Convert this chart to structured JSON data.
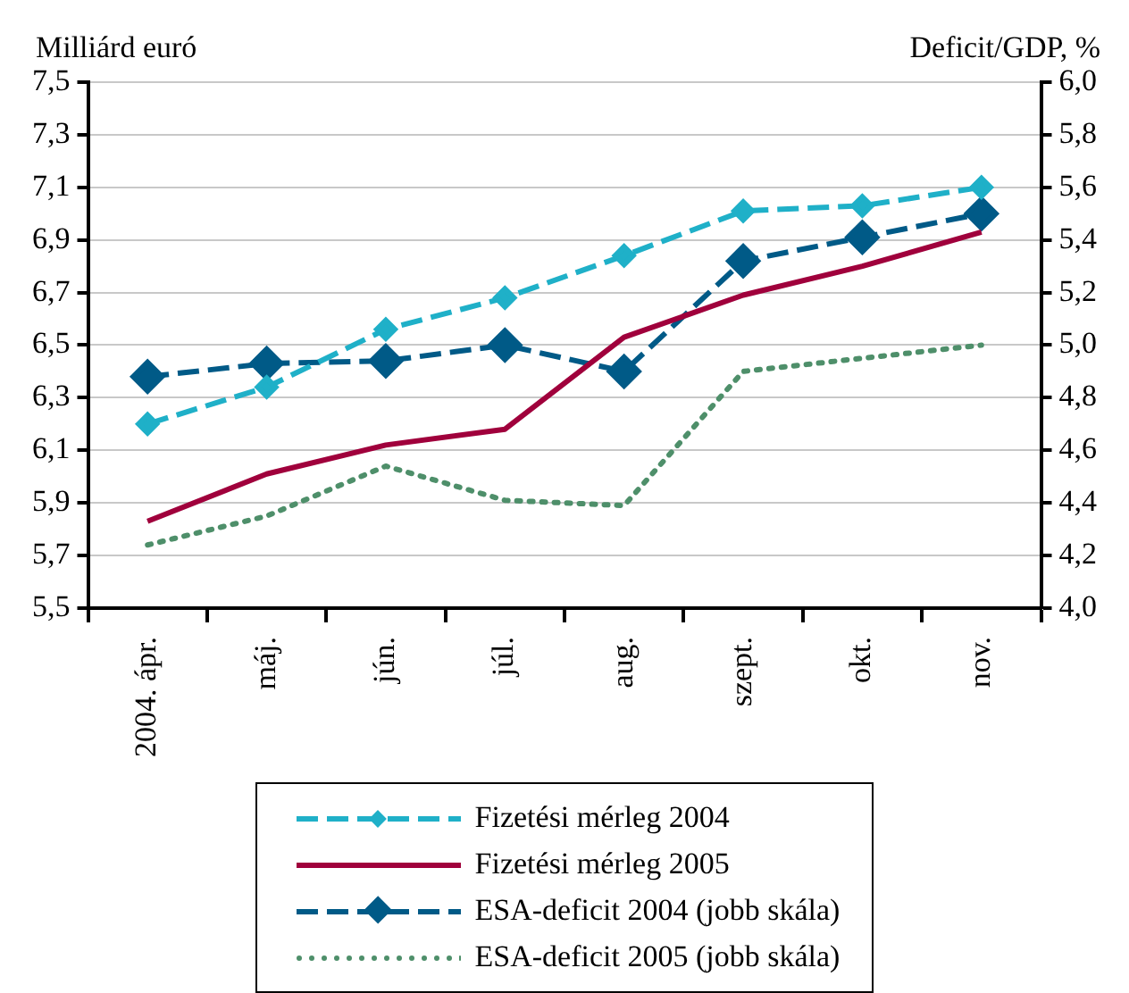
{
  "chart_data": {
    "type": "line",
    "ylabel": "Milliárd euró",
    "y2label": "Deficit/GDP, %",
    "categories": [
      "2004. ápr.",
      "máj.",
      "jún.",
      "júl.",
      "aug.",
      "szept.",
      "okt.",
      "nov."
    ],
    "series": [
      {
        "name": "Fizetési mérleg 2004",
        "color": "#1fb0c8",
        "line_style": "dashed",
        "marker": "diamond",
        "values": [
          6.2,
          6.34,
          6.56,
          6.68,
          6.84,
          7.01,
          7.03,
          7.1
        ]
      },
      {
        "name": "Fizetési mérleg 2005",
        "color": "#a0003c",
        "line_style": "solid",
        "marker": "none",
        "values": [
          5.83,
          6.01,
          6.12,
          6.18,
          6.53,
          6.69,
          6.8,
          6.93
        ]
      },
      {
        "name": "ESA-deficit 2004 (jobb skála)",
        "color": "#005a87",
        "line_style": "dashed",
        "marker": "diamond",
        "axis": "y2",
        "values": [
          4.88,
          4.93,
          4.94,
          5.0,
          4.9,
          5.32,
          5.41,
          5.5
        ]
      },
      {
        "name": "ESA-deficit 2005 (jobb skála)",
        "color": "#4e8f6a",
        "line_style": "dotted",
        "marker": "none",
        "axis": "y2",
        "values": [
          4.24,
          4.35,
          4.54,
          4.41,
          4.39,
          4.9,
          4.95,
          5.0
        ]
      }
    ],
    "ylim": [
      5.5,
      7.5
    ],
    "yticks": [
      {
        "value": 5.5,
        "label": "5,5"
      },
      {
        "value": 5.7,
        "label": "5,7"
      },
      {
        "value": 5.9,
        "label": "5,9"
      },
      {
        "value": 6.1,
        "label": "6,1"
      },
      {
        "value": 6.3,
        "label": "6,3"
      },
      {
        "value": 6.5,
        "label": "6,5"
      },
      {
        "value": 6.7,
        "label": "6,7"
      },
      {
        "value": 6.9,
        "label": "6,9"
      },
      {
        "value": 7.1,
        "label": "7,1"
      },
      {
        "value": 7.3,
        "label": "7,3"
      },
      {
        "value": 7.5,
        "label": "7,5"
      }
    ],
    "y2lim": [
      4.0,
      6.0
    ],
    "y2ticks": [
      {
        "value": 4.0,
        "label": "4,0"
      },
      {
        "value": 4.2,
        "label": "4,2"
      },
      {
        "value": 4.4,
        "label": "4,4"
      },
      {
        "value": 4.6,
        "label": "4,6"
      },
      {
        "value": 4.8,
        "label": "4,8"
      },
      {
        "value": 5.0,
        "label": "5,0"
      },
      {
        "value": 5.2,
        "label": "5,2"
      },
      {
        "value": 5.4,
        "label": "5,4"
      },
      {
        "value": 5.6,
        "label": "5,6"
      },
      {
        "value": 5.8,
        "label": "5,8"
      },
      {
        "value": 6.0,
        "label": "6,0"
      }
    ],
    "grid": "y",
    "legend": "bottom"
  }
}
